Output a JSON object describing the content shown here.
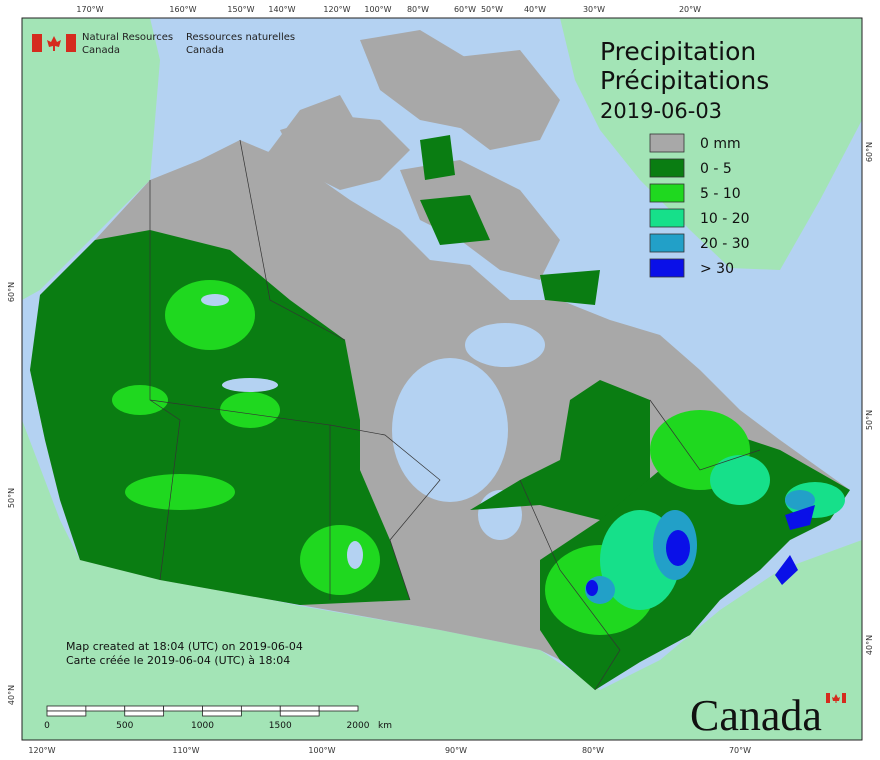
{
  "header": {
    "english": [
      "Natural Resources",
      "Canada"
    ],
    "french": [
      "Ressources naturelles",
      "Canada"
    ]
  },
  "title": {
    "english": "Precipitation",
    "french": "Précipitations",
    "date": "2019-06-03"
  },
  "legend": [
    {
      "label": "0 mm",
      "color": "#a8a8a8"
    },
    {
      "label": "0 - 5",
      "color": "#0a7d12"
    },
    {
      "label": "5 - 10",
      "color": "#1fd81f"
    },
    {
      "label": "10 - 20",
      "color": "#16e08a"
    },
    {
      "label": "20 - 30",
      "color": "#22a0c8"
    },
    {
      "label": "> 30",
      "color": "#0a10e8"
    }
  ],
  "graticule": {
    "top": [
      "170°W",
      "160°W",
      "150°W",
      "140°W",
      "120°W",
      "100°W",
      "80°W",
      "60°W",
      "50°W",
      "40°W",
      "30°W",
      "20°W"
    ],
    "bottom": [
      "120°W",
      "110°W",
      "100°W",
      "90°W",
      "80°W",
      "70°W"
    ],
    "left": [
      "60°N",
      "50°N",
      "40°N"
    ],
    "right": [
      "60°N",
      "50°N",
      "40°N"
    ]
  },
  "credits": [
    "Map created at 18:04 (UTC) on 2019-06-04",
    "Carte créée le 2019-06-04 (UTC) à 18:04"
  ],
  "scale_bar": {
    "labels": [
      "0",
      "500",
      "1000",
      "1500",
      "2000"
    ],
    "unit": "km"
  },
  "wordmark": "Canada"
}
